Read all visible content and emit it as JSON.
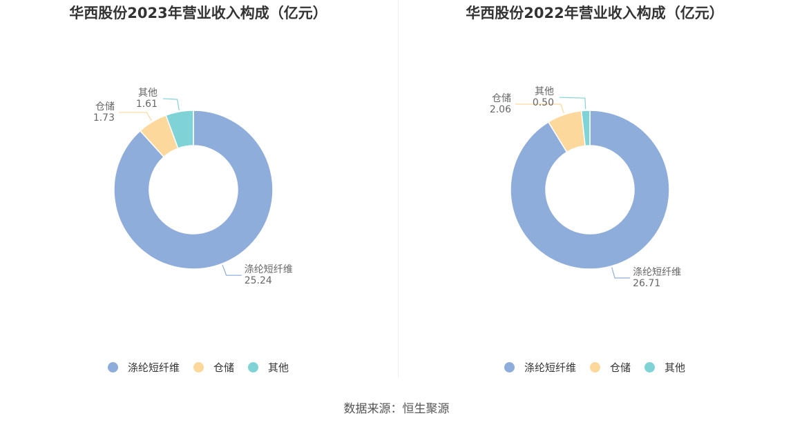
{
  "chart_data": [
    {
      "type": "pie",
      "title": "华西股份2023年营业收入构成（亿元）",
      "categories": [
        "涤纶短纤维",
        "仓储",
        "其他"
      ],
      "values": [
        25.24,
        1.73,
        1.61
      ],
      "value_labels": [
        "25.24",
        "1.73",
        "1.61"
      ],
      "colors": [
        "#8eaddb",
        "#fcd89c",
        "#7fd3d6"
      ],
      "legend": "bottom"
    },
    {
      "type": "pie",
      "title": "华西股份2022年营业收入构成（亿元）",
      "categories": [
        "涤纶短纤维",
        "仓储",
        "其他"
      ],
      "values": [
        26.71,
        2.06,
        0.5
      ],
      "value_labels": [
        "26.71",
        "2.06",
        "0.50"
      ],
      "colors": [
        "#8eaddb",
        "#fcd89c",
        "#7fd3d6"
      ],
      "legend": "bottom"
    }
  ],
  "source": "数据来源：恒生聚源"
}
